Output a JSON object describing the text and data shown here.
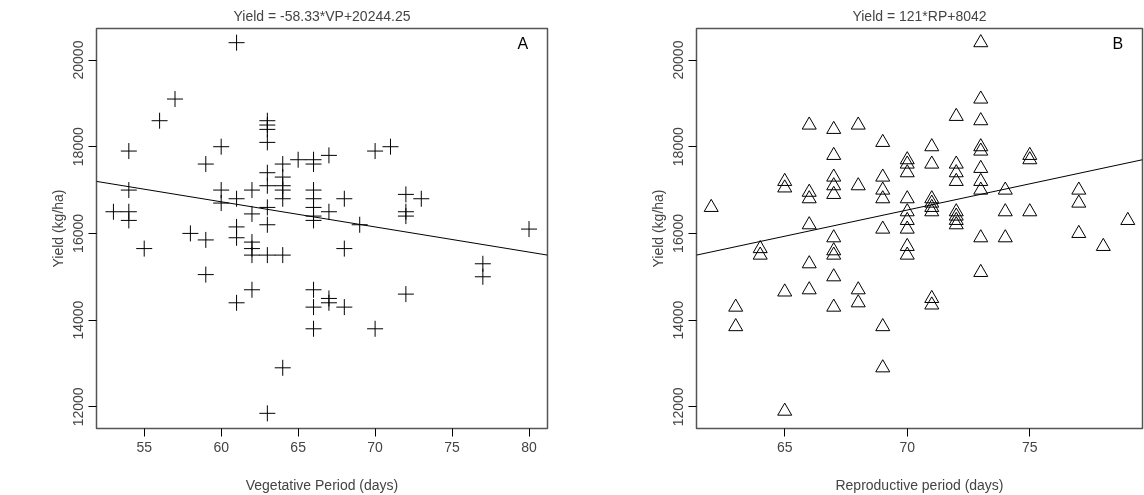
{
  "chart_data": [
    {
      "type": "scatter",
      "title": "Yield = -58.33*VP+20244.25",
      "xlabel": "Vegetative Period (days)",
      "ylabel": "Yield (kg/ha)",
      "annotations": [
        "A"
      ],
      "marker": "cross",
      "grid": false,
      "xlim": [
        51.9,
        81.2
      ],
      "xticks": [
        55,
        60,
        65,
        70,
        75,
        80
      ],
      "ylim": [
        11500,
        20727
      ],
      "yticks": [
        12000,
        14000,
        16000,
        18000,
        20000
      ],
      "series": [
        {
          "color": "#000000",
          "x": [
            53,
            54,
            54,
            54,
            54,
            55,
            56,
            57,
            58,
            59,
            59,
            59,
            60,
            60,
            60,
            61,
            61,
            61,
            61,
            61,
            62,
            62,
            62,
            62,
            62,
            62,
            63,
            63,
            63,
            63,
            63,
            63,
            63,
            63,
            63,
            63,
            64,
            64,
            64,
            64,
            64,
            64,
            64,
            65,
            66,
            66,
            66,
            66,
            66,
            66,
            66,
            66,
            66,
            66,
            67,
            67,
            67,
            67,
            68,
            68,
            68,
            69,
            70,
            70,
            71,
            72,
            72,
            72,
            72,
            73,
            77,
            77,
            80
          ],
          "values": [
            16500,
            16300,
            16500,
            17000,
            17900,
            15650,
            18600,
            19100,
            16000,
            15850,
            17600,
            15050,
            18000,
            17000,
            16700,
            20400,
            16150,
            15900,
            14400,
            16800,
            15500,
            15650,
            15800,
            16450,
            14700,
            17000,
            18600,
            18400,
            18500,
            18100,
            17400,
            17100,
            16600,
            16200,
            15500,
            11850,
            15500,
            12900,
            17600,
            17300,
            17100,
            17000,
            16800,
            17700,
            17700,
            17600,
            17000,
            16800,
            16600,
            16400,
            16300,
            14700,
            14300,
            13800,
            17800,
            16500,
            14500,
            14400,
            16800,
            15650,
            14300,
            16200,
            17900,
            13800,
            18000,
            16900,
            16500,
            16400,
            14600,
            16800,
            15300,
            15000,
            16100
          ]
        },
        {
          "type": "line",
          "color": "#000000",
          "marker": "none",
          "x": [
            51.9,
            81.2
          ],
          "values": [
            17200,
            15500
          ]
        }
      ]
    },
    {
      "type": "scatter",
      "title": "Yield = 121*RP+8042",
      "xlabel": "Reproductive period (days)",
      "ylabel": "Yield (kg/ha)",
      "annotations": [
        "B"
      ],
      "marker": "triangle",
      "grid": false,
      "xlim": [
        61.4,
        79.6
      ],
      "xticks": [
        65,
        70,
        75
      ],
      "ylim": [
        11500,
        20727
      ],
      "yticks": [
        12000,
        14000,
        16000,
        18000,
        20000
      ],
      "series": [
        {
          "color": "#000000",
          "x": [
            62,
            63,
            63,
            64,
            64,
            65,
            65,
            65,
            65,
            66,
            66,
            66,
            66,
            66,
            66,
            67,
            67,
            67,
            67,
            67,
            67,
            67,
            67,
            67,
            67,
            68,
            68,
            68,
            68,
            69,
            69,
            69,
            69,
            69,
            69,
            69,
            70,
            70,
            70,
            70,
            70,
            70,
            70,
            70,
            70,
            71,
            71,
            71,
            71,
            71,
            71,
            71,
            71,
            72,
            72,
            72,
            72,
            72,
            72,
            72,
            72,
            73,
            73,
            73,
            73,
            73,
            73,
            73,
            73,
            73,
            73,
            74,
            74,
            74,
            75,
            75,
            75,
            77,
            77,
            77,
            78,
            79
          ],
          "values": [
            16600,
            14300,
            13850,
            15650,
            15500,
            17050,
            17200,
            14650,
            11900,
            18500,
            16800,
            16950,
            16200,
            15300,
            14700,
            18400,
            17800,
            17300,
            17100,
            16900,
            15900,
            15600,
            15500,
            15000,
            14300,
            18500,
            17100,
            14700,
            14400,
            18100,
            17300,
            17000,
            16800,
            16100,
            13850,
            12900,
            17700,
            17600,
            17400,
            16800,
            16500,
            16300,
            16100,
            15700,
            15500,
            18000,
            17600,
            16800,
            16700,
            16600,
            16500,
            14500,
            14350,
            18700,
            17600,
            17400,
            17200,
            16500,
            16400,
            16300,
            16200,
            20400,
            19100,
            18600,
            18000,
            17900,
            17500,
            17200,
            17000,
            15900,
            15100,
            17000,
            16500,
            15900,
            17800,
            17700,
            16500,
            17000,
            16700,
            16000,
            15700,
            16300
          ]
        },
        {
          "type": "line",
          "color": "#000000",
          "marker": "none",
          "x": [
            61.4,
            79.6
          ],
          "values": [
            15500,
            17700
          ]
        }
      ]
    }
  ]
}
